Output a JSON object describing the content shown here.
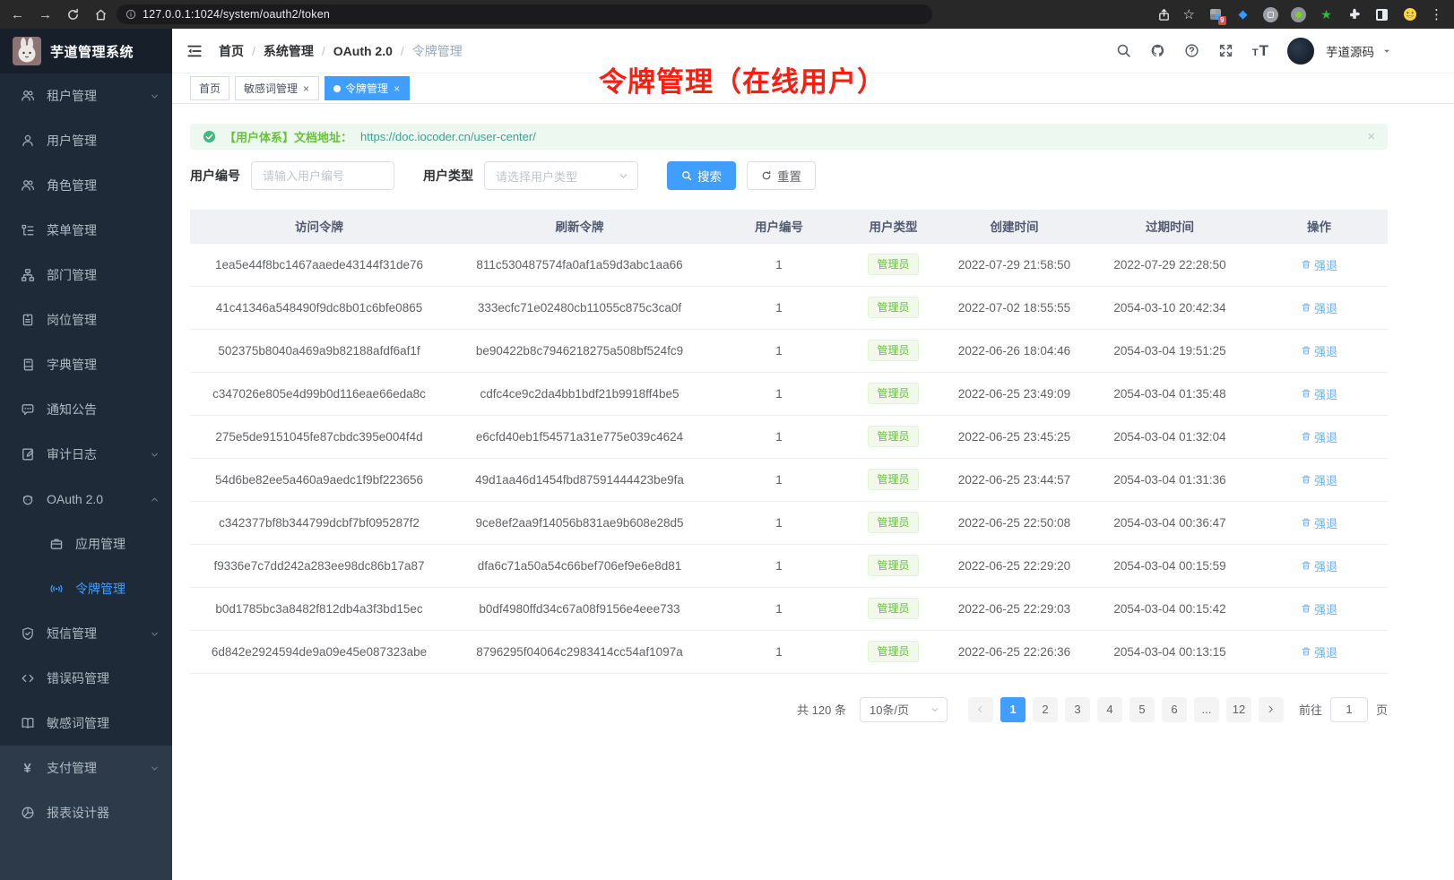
{
  "browser": {
    "url": "127.0.0.1:1024/system/oauth2/token",
    "extension_badge": "9"
  },
  "app": {
    "title": "芋道管理系统"
  },
  "sidebar": {
    "items": [
      {
        "id": "tenant",
        "label": "租户管理",
        "icon": "users",
        "chevron": "down"
      },
      {
        "id": "user",
        "label": "用户管理",
        "icon": "user"
      },
      {
        "id": "role",
        "label": "角色管理",
        "icon": "users"
      },
      {
        "id": "menu",
        "label": "菜单管理",
        "icon": "menu"
      },
      {
        "id": "dept",
        "label": "部门管理",
        "icon": "org"
      },
      {
        "id": "post",
        "label": "岗位管理",
        "icon": "badge"
      },
      {
        "id": "dict",
        "label": "字典管理",
        "icon": "dict"
      },
      {
        "id": "notice",
        "label": "通知公告",
        "icon": "notice"
      },
      {
        "id": "audit-log",
        "label": "审计日志",
        "icon": "audit",
        "chevron": "down"
      },
      {
        "id": "oauth2",
        "label": "OAuth 2.0",
        "icon": "oauth",
        "chevron": "up"
      },
      {
        "id": "oauth2-app",
        "label": "应用管理",
        "icon": "app",
        "child": true
      },
      {
        "id": "oauth2-token",
        "label": "令牌管理",
        "icon": "token",
        "child": true,
        "active": true
      },
      {
        "id": "sms",
        "label": "短信管理",
        "icon": "shield",
        "chevron": "down"
      },
      {
        "id": "error-code",
        "label": "错误码管理",
        "icon": "code"
      },
      {
        "id": "sensitive-word",
        "label": "敏感词管理",
        "icon": "book"
      },
      {
        "id": "pay",
        "label": "支付管理",
        "icon": "pay",
        "chevron": "down",
        "section": "bottom"
      },
      {
        "id": "report",
        "label": "报表设计器",
        "icon": "report",
        "section": "bottom"
      }
    ]
  },
  "header": {
    "breadcrumb": [
      "首页",
      "系统管理",
      "OAuth 2.0",
      "令牌管理"
    ],
    "username": "芋道源码"
  },
  "tabs": [
    {
      "id": "home",
      "label": "首页"
    },
    {
      "id": "sensitive-word",
      "label": "敏感词管理",
      "closable": true
    },
    {
      "id": "token",
      "label": "令牌管理",
      "closable": true,
      "active": true
    }
  ],
  "annotation": "令牌管理（在线用户）",
  "alert": {
    "text": "【用户体系】文档地址：",
    "link": "https://doc.iocoder.cn/user-center/"
  },
  "filters": {
    "user_id_label": "用户编号",
    "user_id_placeholder": "请输入用户编号",
    "user_type_label": "用户类型",
    "user_type_placeholder": "请选择用户类型",
    "search_label": "搜索",
    "reset_label": "重置"
  },
  "table": {
    "headers": [
      "访问令牌",
      "刷新令牌",
      "用户编号",
      "用户类型",
      "创建时间",
      "过期时间",
      "操作"
    ],
    "user_type_badge": "管理员",
    "action_label": "强退",
    "rows": [
      {
        "access": "1ea5e44f8bc1467aaede43144f31de76",
        "refresh": "811c530487574fa0af1a59d3abc1aa66",
        "user_id": "1",
        "created": "2022-07-29 21:58:50",
        "expires": "2022-07-29 22:28:50"
      },
      {
        "access": "41c41346a548490f9dc8b01c6bfe0865",
        "refresh": "333ecfc71e02480cb11055c875c3ca0f",
        "user_id": "1",
        "created": "2022-07-02 18:55:55",
        "expires": "2054-03-10 20:42:34"
      },
      {
        "access": "502375b8040a469a9b82188afdf6af1f",
        "refresh": "be90422b8c7946218275a508bf524fc9",
        "user_id": "1",
        "created": "2022-06-26 18:04:46",
        "expires": "2054-03-04 19:51:25"
      },
      {
        "access": "c347026e805e4d99b0d116eae66eda8c",
        "refresh": "cdfc4ce9c2da4bb1bdf21b9918ff4be5",
        "user_id": "1",
        "created": "2022-06-25 23:49:09",
        "expires": "2054-03-04 01:35:48"
      },
      {
        "access": "275e5de9151045fe87cbdc395e004f4d",
        "refresh": "e6cfd40eb1f54571a31e775e039c4624",
        "user_id": "1",
        "created": "2022-06-25 23:45:25",
        "expires": "2054-03-04 01:32:04"
      },
      {
        "access": "54d6be82ee5a460a9aedc1f9bf223656",
        "refresh": "49d1aa46d1454fbd87591444423be9fa",
        "user_id": "1",
        "created": "2022-06-25 23:44:57",
        "expires": "2054-03-04 01:31:36"
      },
      {
        "access": "c342377bf8b344799dcbf7bf095287f2",
        "refresh": "9ce8ef2aa9f14056b831ae9b608e28d5",
        "user_id": "1",
        "created": "2022-06-25 22:50:08",
        "expires": "2054-03-04 00:36:47"
      },
      {
        "access": "f9336e7c7dd242a283ee98dc86b17a87",
        "refresh": "dfa6c71a50a54c66bef706ef9e6e8d81",
        "user_id": "1",
        "created": "2022-06-25 22:29:20",
        "expires": "2054-03-04 00:15:59"
      },
      {
        "access": "b0d1785bc3a8482f812db4a3f3bd15ec",
        "refresh": "b0df4980ffd34c67a08f9156e4eee733",
        "user_id": "1",
        "created": "2022-06-25 22:29:03",
        "expires": "2054-03-04 00:15:42"
      },
      {
        "access": "6d842e2924594de9a09e45e087323abe",
        "refresh": "8796295f04064c2983414cc54af1097a",
        "user_id": "1",
        "created": "2022-06-25 22:26:36",
        "expires": "2054-03-04 00:13:15"
      }
    ]
  },
  "pagination": {
    "total": "共 120 条",
    "page_size": "10条/页",
    "pages": [
      "1",
      "2",
      "3",
      "4",
      "5",
      "6",
      "...",
      "12"
    ],
    "active_page": "1",
    "goto_label": "前往",
    "goto_value": "1",
    "goto_suffix": "页"
  },
  "colors": {
    "primary": "#409eff",
    "success": "#67c23a",
    "annotation_red": "#fb1e10",
    "sidebar_bg": "#1e2a38"
  }
}
